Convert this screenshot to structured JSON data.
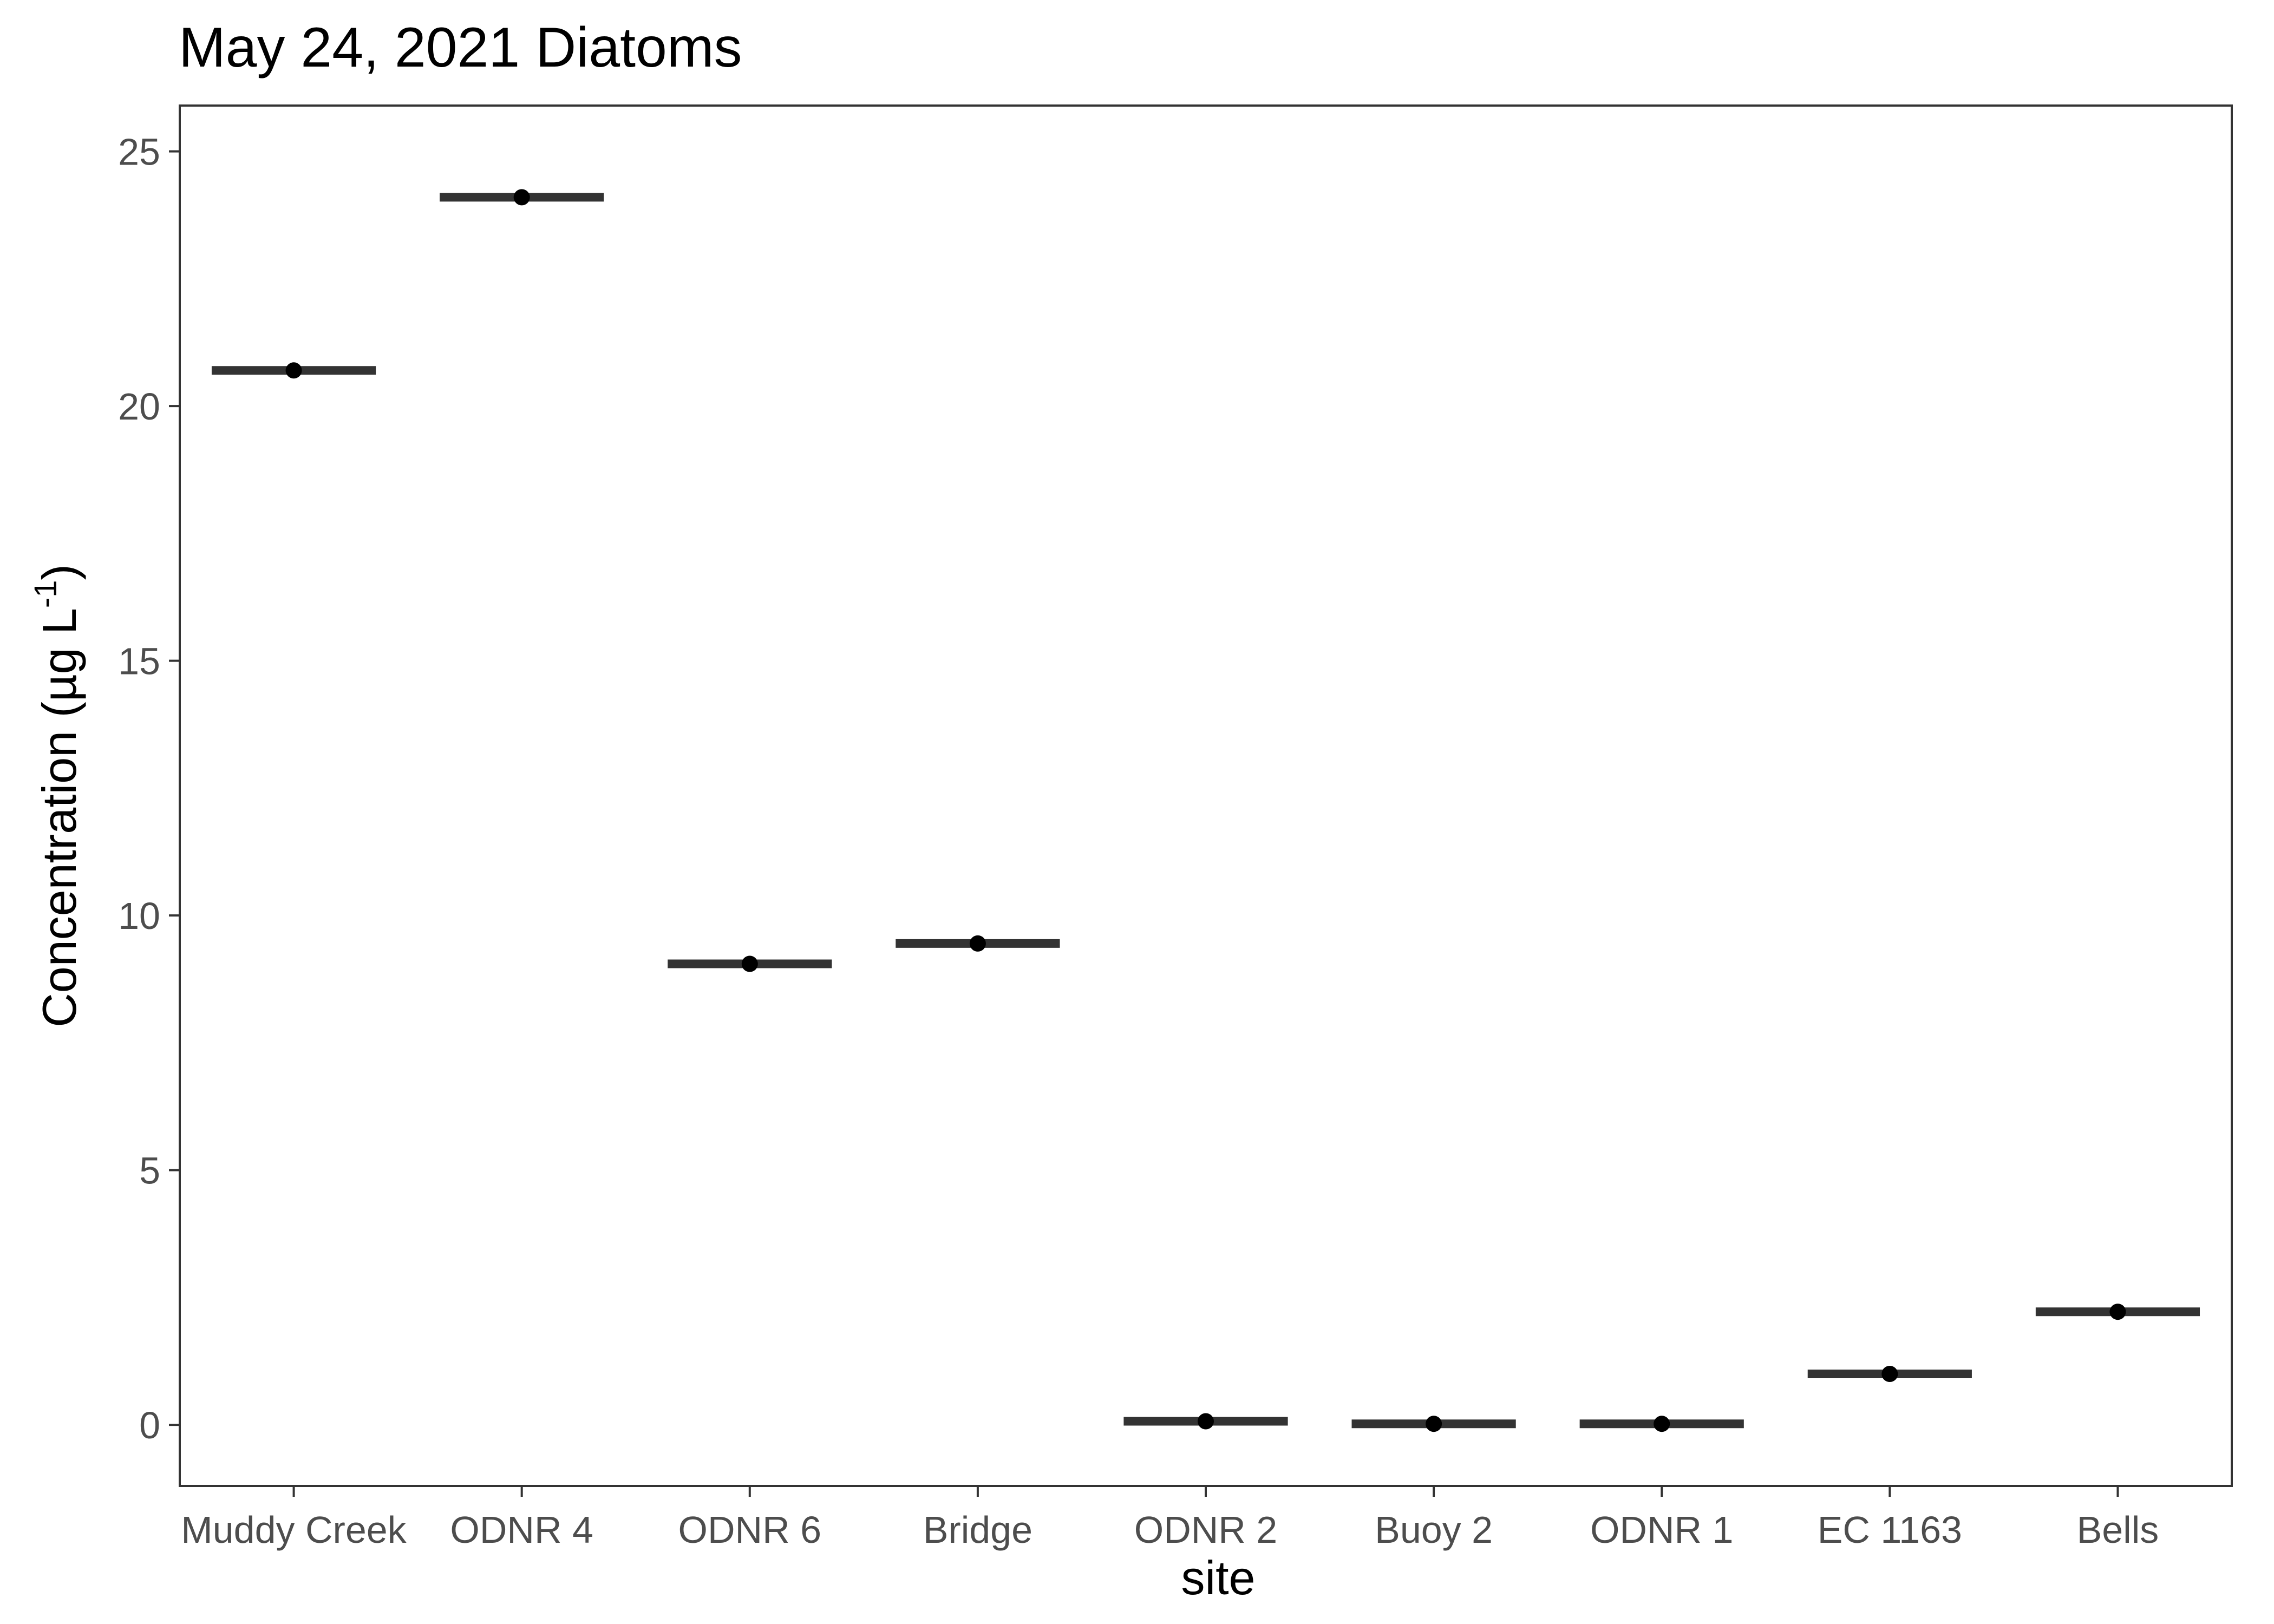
{
  "chart_data": {
    "type": "scatter",
    "title": "May 24, 2021 Diatoms",
    "xlabel": "site",
    "ylabel_main": "Concentration (µg L",
    "ylabel_sup": "-1",
    "ylabel_close": ")",
    "categories": [
      "Muddy Creek",
      "ODNR 4",
      "ODNR 6",
      "Bridge",
      "ODNR 2",
      "Buoy 2",
      "ODNR 1",
      "EC 1163",
      "Bells"
    ],
    "series": [
      {
        "values": [
          20.7,
          24.1,
          9.05,
          9.45,
          0.07,
          0.02,
          0.02,
          1.0,
          2.22
        ]
      }
    ],
    "yticks": [
      0,
      5,
      10,
      15,
      20,
      25
    ],
    "ylim": [
      -1.2,
      25.9
    ],
    "grid": false,
    "legend": "none",
    "colors": {
      "crossbar": "#333333",
      "point": "#000000",
      "border": "#333333",
      "tick_text": "#4d4d4d"
    }
  }
}
